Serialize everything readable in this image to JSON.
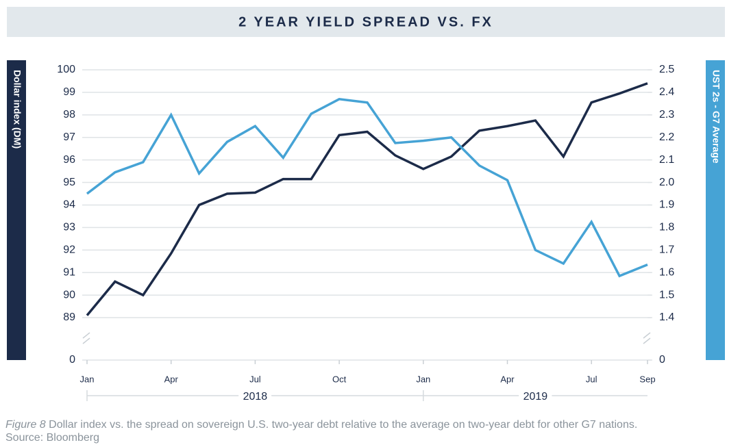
{
  "chart_data": {
    "type": "line",
    "title": "2 YEAR YIELD SPREAD VS. FX",
    "y_label": "Dollar index (DM)",
    "y2_label": "UST 2s - G7 Average",
    "categories": [
      "Jan",
      null,
      null,
      "Apr",
      null,
      null,
      "Jul",
      null,
      null,
      "Oct",
      null,
      null,
      "Jan",
      null,
      null,
      "Apr",
      null,
      null,
      "Jul",
      null,
      "Sep"
    ],
    "years": [
      "2018",
      "2019"
    ],
    "series": [
      {
        "name": "Dollar index (DM)",
        "color": "#1c2b49",
        "axis": "y",
        "values": [
          89.1,
          90.6,
          90.0,
          91.85,
          94.0,
          94.5,
          94.55,
          95.15,
          95.15,
          97.1,
          97.25,
          96.2,
          95.6,
          96.15,
          97.3,
          97.5,
          97.75,
          96.15,
          98.55,
          98.95,
          99.4
        ]
      },
      {
        "name": "UST 2s - G7 Average",
        "color": "#46a3d5",
        "axis": "y2",
        "values": [
          1.95,
          2.045,
          2.09,
          2.3,
          2.04,
          2.18,
          2.25,
          2.11,
          2.305,
          2.37,
          2.355,
          2.175,
          2.185,
          2.2,
          2.075,
          2.01,
          1.7,
          1.64,
          1.825,
          1.585,
          1.635
        ]
      }
    ],
    "ylim": [
      89,
      100
    ],
    "yticks": [
      0,
      89,
      90,
      91,
      92,
      93,
      94,
      95,
      96,
      97,
      98,
      99,
      100
    ],
    "y2lim": [
      1.4,
      2.5
    ],
    "y2ticks": [
      0,
      1.4,
      1.5,
      1.6,
      1.7,
      1.8,
      1.9,
      {
        "value": 2,
        "label": "2.0"
      },
      2.1,
      2.2,
      2.3,
      2.4,
      2.5
    ],
    "axis_break": true,
    "grid": true,
    "caption_label": "Figure 8",
    "caption": "Dollar index vs. the spread on sovereign U.S. two-year debt relative to the average on two-year debt for other G7 nations.",
    "source": "Source: Bloomberg"
  }
}
